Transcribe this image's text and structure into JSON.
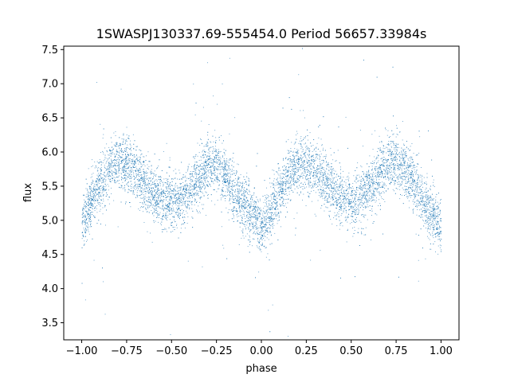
{
  "chart_data": {
    "type": "scatter",
    "title": "1SWASPJ130337.69-555454.0 Period 56657.33984s",
    "xlabel": "phase",
    "ylabel": "flux",
    "xlim": [
      -1.1,
      1.1
    ],
    "ylim": [
      3.25,
      7.55
    ],
    "xticks": [
      -1.0,
      -0.75,
      -0.5,
      -0.25,
      0.0,
      0.25,
      0.5,
      0.75,
      1.0
    ],
    "xtick_labels": [
      "−1.00",
      "−0.75",
      "−0.50",
      "−0.25",
      "0.00",
      "0.25",
      "0.50",
      "0.75",
      "1.00"
    ],
    "yticks": [
      3.5,
      4.0,
      4.5,
      5.0,
      5.5,
      6.0,
      6.5,
      7.0,
      7.5
    ],
    "ytick_labels": [
      "3.5",
      "4.0",
      "4.5",
      "5.0",
      "5.5",
      "6.0",
      "6.5",
      "7.0",
      "7.5"
    ],
    "grid": false,
    "marker_color": "#1f77b4",
    "series": [
      {
        "name": "",
        "x": [
          -1.0,
          -0.95,
          -0.9,
          -0.85,
          -0.8,
          -0.75,
          -0.7,
          -0.65,
          -0.6,
          -0.55,
          -0.5,
          -0.45,
          -0.4,
          -0.35,
          -0.3,
          -0.25,
          -0.2,
          -0.15,
          -0.1,
          -0.05,
          0.0,
          0.05,
          0.1,
          0.15,
          0.2,
          0.25,
          0.3,
          0.35,
          0.4,
          0.45,
          0.5,
          0.55,
          0.6,
          0.65,
          0.7,
          0.75,
          0.8,
          0.85,
          0.9,
          0.95,
          1.0
        ],
        "y": [
          4.9,
          5.3,
          5.55,
          5.75,
          5.85,
          5.85,
          5.7,
          5.55,
          5.4,
          5.3,
          5.25,
          5.3,
          5.45,
          5.65,
          5.8,
          5.8,
          5.65,
          5.4,
          5.25,
          5.1,
          4.85,
          5.1,
          5.4,
          5.65,
          5.8,
          5.85,
          5.75,
          5.6,
          5.45,
          5.3,
          5.25,
          5.3,
          5.45,
          5.65,
          5.8,
          5.85,
          5.75,
          5.55,
          5.3,
          5.1,
          4.9
        ]
      }
    ]
  }
}
